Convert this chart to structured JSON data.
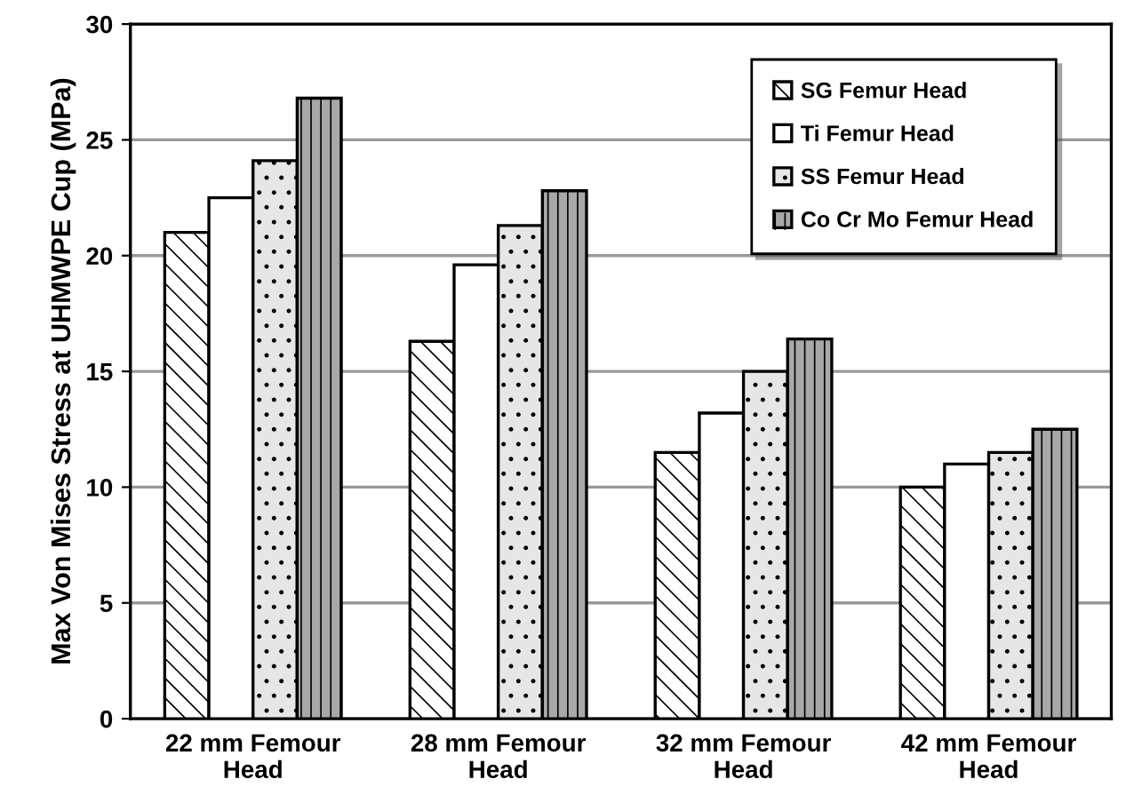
{
  "chart_data": {
    "type": "bar",
    "ylabel": "Max Von Mises Stress at UHMWPE Cup (MPa)",
    "categories": [
      "22 mm Femour\nHead",
      "28 mm Femour\nHead",
      "32 mm Femour\nHead",
      "42 mm Femour\nHead"
    ],
    "series": [
      {
        "name": "SG Femur Head",
        "color": "#ffffff",
        "values": [
          21.0,
          16.3,
          11.5,
          10.0
        ]
      },
      {
        "name": "Ti Femur Head",
        "color": "#ffffff",
        "values": [
          22.5,
          19.6,
          13.2,
          11.0
        ]
      },
      {
        "name": "SS Femur Head",
        "color": "#e6e6e6",
        "values": [
          24.1,
          21.3,
          15.0,
          11.5
        ]
      },
      {
        "name": "Co Cr Mo Femur Head",
        "color": "#a8a8a8",
        "values": [
          26.8,
          22.8,
          16.4,
          12.5
        ]
      }
    ],
    "ylim": [
      0,
      30
    ],
    "yticks": [
      0,
      5,
      10,
      15,
      20,
      25,
      30
    ],
    "grid": "y",
    "legend": "top right"
  }
}
